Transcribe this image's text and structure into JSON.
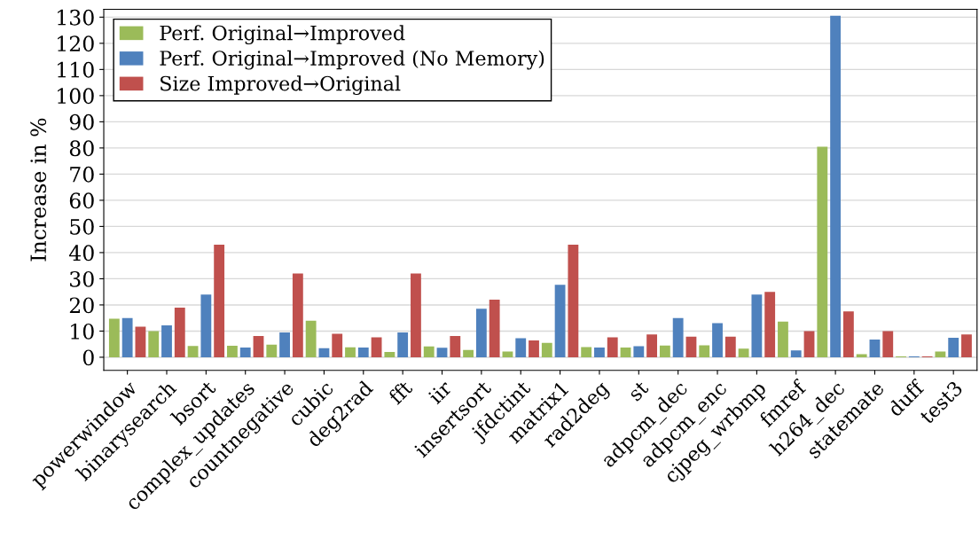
{
  "chart_data": {
    "type": "bar",
    "ylabel": "Increase in %",
    "categories": [
      "powerwindow",
      "binarysearch",
      "bsort",
      "complex_updates",
      "countnegative",
      "cubic",
      "deg2rad",
      "fft",
      "iir",
      "insertsort",
      "jfdctint",
      "matrix1",
      "rad2deg",
      "st",
      "adpcm_dec",
      "adpcm_enc",
      "cjpeg_wrbmp",
      "fmref",
      "h264_dec",
      "statemate",
      "duff",
      "test3"
    ],
    "series": [
      {
        "name": "Perf. Original→Improved",
        "color": "#9bbb59",
        "values": [
          14.7,
          10,
          4.3,
          4.4,
          4.8,
          14,
          3.8,
          2,
          4.1,
          2.8,
          2.2,
          5.5,
          3.9,
          3.7,
          4.5,
          4.6,
          3.3,
          13.6,
          80.5,
          1.2,
          0.3,
          2.2
        ]
      },
      {
        "name": "Perf. Original→Improved (No Memory)",
        "color": "#4f81bd",
        "values": [
          15,
          12.2,
          24,
          3.7,
          9.5,
          3.5,
          3.7,
          9.5,
          3.6,
          18.5,
          7.3,
          27.7,
          3.7,
          4.2,
          15,
          13,
          24,
          2.6,
          130.5,
          6.8,
          0.3,
          7.4
        ]
      },
      {
        "name": "Size Improved→Original",
        "color": "#c0504d",
        "values": [
          11.7,
          19,
          43,
          8.1,
          32,
          9,
          7.6,
          32,
          8.1,
          22,
          6.4,
          43,
          7.6,
          8.7,
          7.9,
          7.9,
          25,
          10,
          17.5,
          10,
          0.3,
          8.7
        ]
      }
    ],
    "ylim": [
      -5,
      133
    ],
    "yticks": [
      0,
      10,
      20,
      30,
      40,
      50,
      60,
      70,
      80,
      90,
      100,
      110,
      120,
      130
    ],
    "grid": "y",
    "legend": "top left"
  }
}
